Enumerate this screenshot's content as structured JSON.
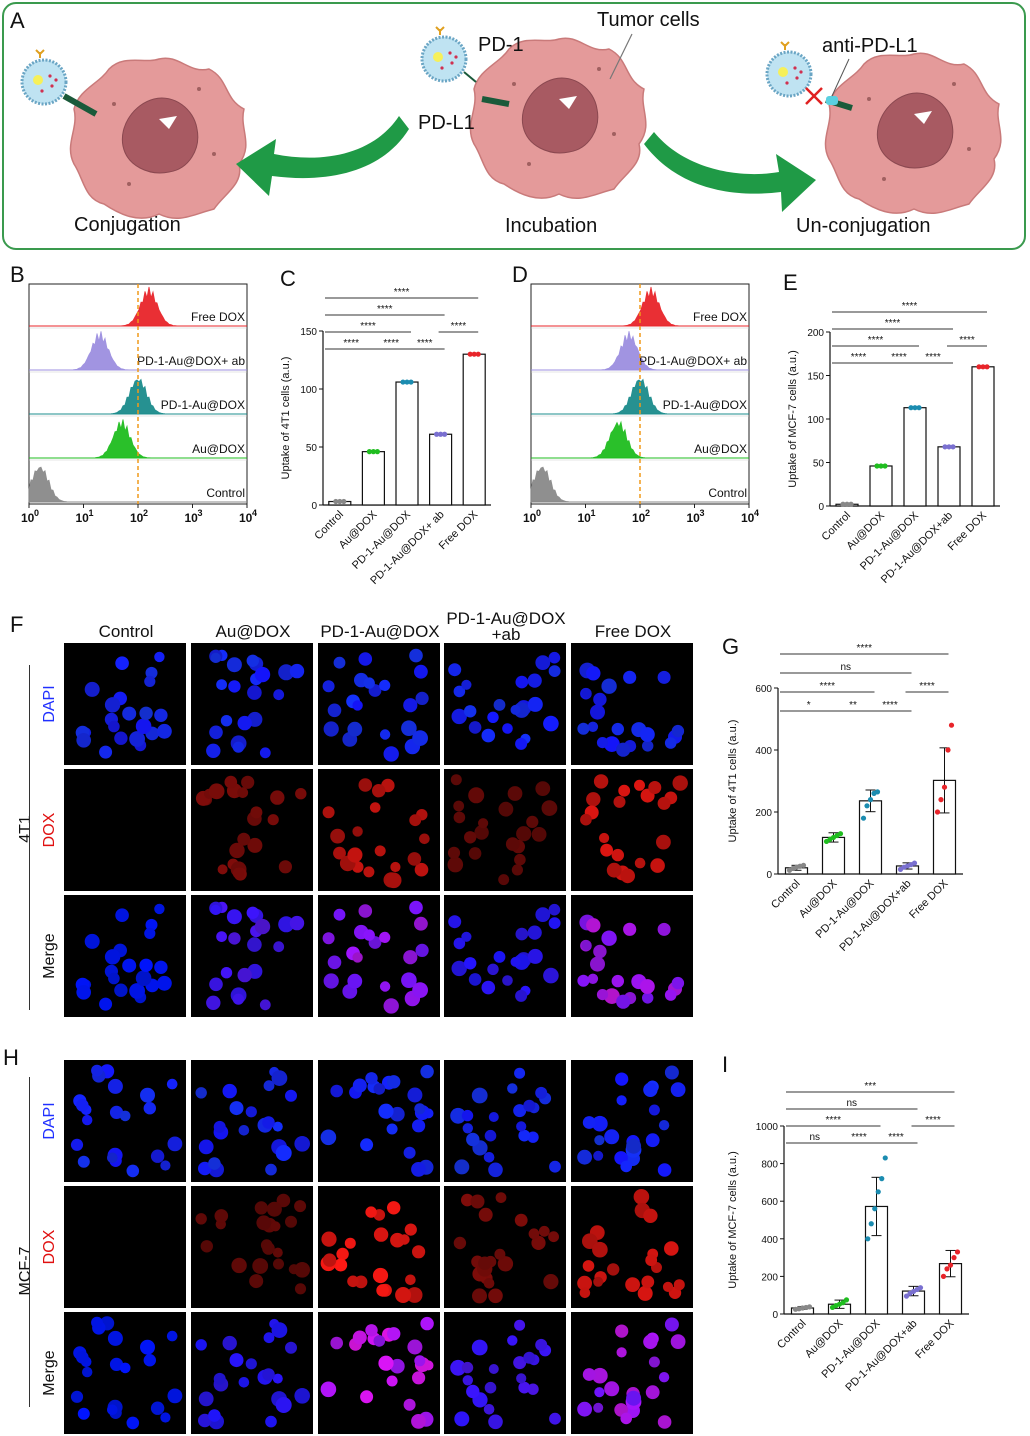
{
  "panel_letters": {
    "A": "A",
    "B": "B",
    "C": "C",
    "D": "D",
    "E": "E",
    "F": "F",
    "G": "G",
    "H": "H",
    "I": "I"
  },
  "schematic": {
    "tumor_cells": "Tumor cells",
    "pd1": "PD-1",
    "pdl1": "PD-L1",
    "anti_pdl1": "anti-PD-L1",
    "conjugation": "Conjugation",
    "incubation": "Incubation",
    "unconjugation": "Un-conjugation"
  },
  "colors": {
    "free_dox": "#e8242a",
    "pd1_ab": "#9c8fe0",
    "pd1_audox": "#1b8c8c",
    "audox": "#1fbd1f",
    "control": "#8a8a8a",
    "arrow": "#1f9a46",
    "dashed": "#f09a1a",
    "dapi": "#2030ff",
    "dox": "#e01010"
  },
  "flow_B": {
    "tracks": [
      "Free DOX",
      "PD-1-Au@DOX+ ab",
      "PD-1-Au@DOX",
      "Au@DOX",
      "Control"
    ],
    "peaks_log": [
      2.2,
      1.3,
      2.0,
      1.7,
      0.2
    ],
    "axis_ticks": [
      "10",
      "10",
      "10",
      "10",
      "10"
    ],
    "axis_exps": [
      "0",
      "1",
      "2",
      "3",
      "4"
    ]
  },
  "flow_D": {
    "tracks": [
      "Free DOX",
      "PD-1-Au@DOX+ ab",
      "PD-1-Au@DOX",
      "Au@DOX",
      "Control"
    ],
    "peaks_log": [
      2.2,
      1.8,
      2.0,
      1.6,
      0.2
    ],
    "axis_ticks": [
      "10",
      "10",
      "10",
      "10",
      "10"
    ],
    "axis_exps": [
      "0",
      "1",
      "2",
      "3",
      "4"
    ]
  },
  "chart_data": [
    {
      "panel": "C",
      "type": "bar",
      "ylabel": "Uptake of 4T1 cells (a.u.)",
      "ylim": [
        0,
        150
      ],
      "yticks": [
        0,
        50,
        100,
        150
      ],
      "categories": [
        "Control",
        "Au@DOX",
        "PD-1-Au@DOX",
        "PD-1-Au@DOX+ ab",
        "Free DOX"
      ],
      "values": [
        3,
        46,
        106,
        61,
        130
      ],
      "point_colors": [
        "#888888",
        "#1fbd1f",
        "#1b8cb0",
        "#7a70d0",
        "#e8242a"
      ],
      "sig": [
        {
          "from": 0,
          "to": 4,
          "label": "****"
        },
        {
          "from": 0,
          "to": 3,
          "label": "****"
        },
        {
          "from": 0,
          "to": 2,
          "label": "****"
        },
        {
          "from": 3,
          "to": 4,
          "label": "****"
        },
        {
          "from": 0,
          "to": 1,
          "label": "****"
        },
        {
          "from": 1,
          "to": 2,
          "label": "****"
        },
        {
          "from": 2,
          "to": 3,
          "label": "****"
        }
      ]
    },
    {
      "panel": "E",
      "type": "bar",
      "ylabel": "Uptake of MCF-7 cells (a.u.)",
      "ylim": [
        0,
        200
      ],
      "yticks": [
        0,
        50,
        100,
        150,
        200
      ],
      "categories": [
        "Control",
        "Au@DOX",
        "PD-1-Au@DOX",
        "PD-1-Au@DOX+ab",
        "Free DOX"
      ],
      "values": [
        2,
        46,
        113,
        68,
        160
      ],
      "point_colors": [
        "#888888",
        "#1fbd1f",
        "#1b8cb0",
        "#7a70d0",
        "#e8242a"
      ],
      "sig": [
        {
          "from": 0,
          "to": 4,
          "label": "****"
        },
        {
          "from": 0,
          "to": 3,
          "label": "****"
        },
        {
          "from": 0,
          "to": 2,
          "label": "****"
        },
        {
          "from": 3,
          "to": 4,
          "label": "****"
        },
        {
          "from": 0,
          "to": 1,
          "label": "****"
        },
        {
          "from": 1,
          "to": 2,
          "label": "****"
        },
        {
          "from": 2,
          "to": 3,
          "label": "****"
        }
      ]
    },
    {
      "panel": "G",
      "type": "bar",
      "ylabel": "Uptake of 4T1 cells (a.u.)",
      "ylim": [
        0,
        600
      ],
      "yticks": [
        0,
        200,
        400,
        600
      ],
      "categories": [
        "Control",
        "Au@DOX",
        "PD-1-Au@DOX",
        "PD-1-Au@DOX+ab",
        "Free DOX"
      ],
      "values": [
        20,
        118,
        236,
        26,
        302
      ],
      "errors": [
        8,
        15,
        35,
        10,
        105
      ],
      "points": [
        [
          12,
          18,
          22,
          25,
          28
        ],
        [
          105,
          112,
          118,
          124,
          130
        ],
        [
          180,
          220,
          240,
          260,
          265
        ],
        [
          15,
          22,
          26,
          30,
          35
        ],
        [
          200,
          240,
          280,
          400,
          480
        ]
      ],
      "point_colors": [
        "#888888",
        "#1fbd1f",
        "#1b8cb0",
        "#7a70d0",
        "#e8242a"
      ],
      "sig": [
        {
          "from": 0,
          "to": 4,
          "label": "****"
        },
        {
          "from": 0,
          "to": 3,
          "label": "ns"
        },
        {
          "from": 0,
          "to": 2,
          "label": "****"
        },
        {
          "from": 3,
          "to": 4,
          "label": "****"
        },
        {
          "from": 0,
          "to": 1,
          "label": "*"
        },
        {
          "from": 1,
          "to": 2,
          "label": "**"
        },
        {
          "from": 2,
          "to": 3,
          "label": "****"
        }
      ]
    },
    {
      "panel": "I",
      "type": "bar",
      "ylabel": "Uptake of MCF-7 cells (a.u.)",
      "ylim": [
        0,
        1000
      ],
      "yticks": [
        0,
        200,
        400,
        600,
        800,
        1000
      ],
      "categories": [
        "Control",
        "Au@DOX",
        "PD-1-Au@DOX",
        "PD-1-Au@DOX+ab",
        "Free DOX"
      ],
      "values": [
        32,
        52,
        572,
        122,
        268
      ],
      "errors": [
        8,
        22,
        155,
        25,
        70
      ],
      "points": [
        [
          25,
          28,
          32,
          35,
          38
        ],
        [
          35,
          45,
          52,
          60,
          75
        ],
        [
          400,
          480,
          560,
          650,
          720,
          830
        ],
        [
          95,
          110,
          120,
          130,
          140
        ],
        [
          200,
          240,
          260,
          300,
          330
        ]
      ],
      "point_colors": [
        "#888888",
        "#1fbd1f",
        "#1b8cb0",
        "#7a70d0",
        "#e8242a"
      ],
      "sig": [
        {
          "from": 0,
          "to": 4,
          "label": "***"
        },
        {
          "from": 0,
          "to": 3,
          "label": "ns"
        },
        {
          "from": 0,
          "to": 2,
          "label": "****"
        },
        {
          "from": 3,
          "to": 4,
          "label": "****"
        },
        {
          "from": 0,
          "to": 1,
          "label": "ns"
        },
        {
          "from": 1,
          "to": 2,
          "label": "****"
        },
        {
          "from": 2,
          "to": 3,
          "label": "****"
        }
      ]
    }
  ],
  "microscopy": {
    "columns": [
      "Control",
      "Au@DOX",
      "PD-1-Au@DOX",
      "PD-1-Au@DOX\n+ab",
      "Free DOX"
    ],
    "col_line1": [
      "Control",
      "Au@DOX",
      "PD-1-Au@DOX",
      "PD-1-Au@DOX",
      "Free DOX"
    ],
    "col_line2": [
      "",
      "",
      "",
      "+ab",
      ""
    ],
    "rows": [
      "DAPI",
      "DOX",
      "Merge"
    ],
    "cell_line_F": "4T1",
    "cell_line_H": "MCF-7",
    "dox_intensity_F": [
      0.0,
      0.35,
      0.75,
      0.2,
      0.85
    ],
    "dox_intensity_H": [
      0.0,
      0.2,
      1.0,
      0.35,
      0.8
    ]
  }
}
